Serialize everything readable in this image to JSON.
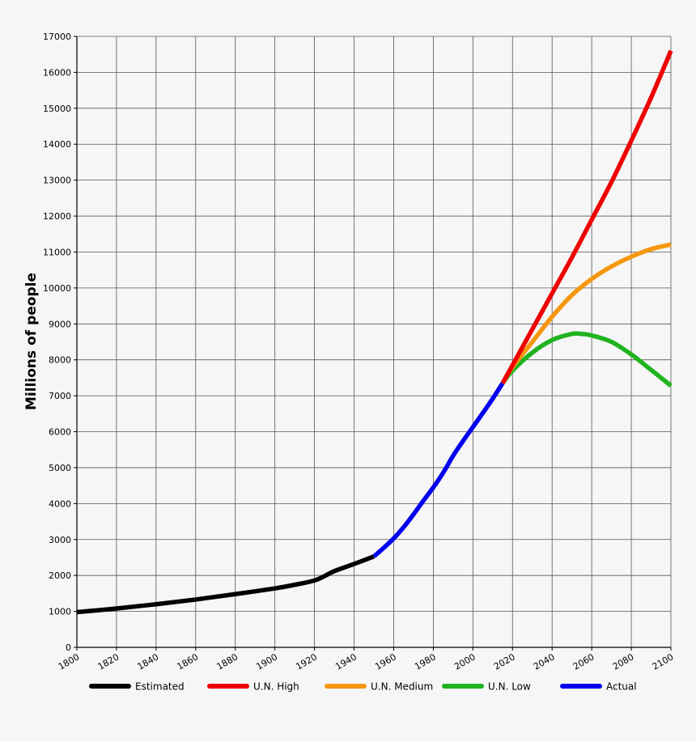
{
  "chart_data": {
    "type": "line",
    "title": "",
    "xlabel": "",
    "ylabel": "Millions of people",
    "xlim": [
      1800,
      2100
    ],
    "ylim": [
      0,
      17000
    ],
    "x_ticks": [
      1800,
      1820,
      1840,
      1860,
      1880,
      1900,
      1920,
      1940,
      1960,
      1980,
      2000,
      2020,
      2040,
      2060,
      2080,
      2100
    ],
    "y_ticks": [
      0,
      1000,
      2000,
      3000,
      4000,
      5000,
      6000,
      7000,
      8000,
      9000,
      10000,
      11000,
      12000,
      13000,
      14000,
      15000,
      16000,
      17000
    ],
    "grid": true,
    "legend_position": "bottom",
    "series": [
      {
        "name": "Estimated",
        "color": "#000000",
        "points": [
          [
            1800,
            980
          ],
          [
            1820,
            1080
          ],
          [
            1840,
            1200
          ],
          [
            1860,
            1330
          ],
          [
            1880,
            1480
          ],
          [
            1900,
            1640
          ],
          [
            1910,
            1740
          ],
          [
            1920,
            1860
          ],
          [
            1925,
            1980
          ],
          [
            1930,
            2120
          ],
          [
            1940,
            2320
          ],
          [
            1950,
            2530
          ]
        ]
      },
      {
        "name": "Actual",
        "color": "#0000ee",
        "points": [
          [
            1950,
            2530
          ],
          [
            1955,
            2770
          ],
          [
            1960,
            3030
          ],
          [
            1965,
            3340
          ],
          [
            1970,
            3700
          ],
          [
            1975,
            4080
          ],
          [
            1980,
            4450
          ],
          [
            1985,
            4860
          ],
          [
            1990,
            5330
          ],
          [
            1995,
            5740
          ],
          [
            2000,
            6130
          ],
          [
            2005,
            6520
          ],
          [
            2010,
            6920
          ],
          [
            2015,
            7350
          ]
        ]
      },
      {
        "name": "U.N. High",
        "color": "#ee0000",
        "points": [
          [
            2015,
            7350
          ],
          [
            2020,
            7850
          ],
          [
            2030,
            8850
          ],
          [
            2040,
            9850
          ],
          [
            2050,
            10850
          ],
          [
            2060,
            11900
          ],
          [
            2070,
            12950
          ],
          [
            2080,
            14100
          ],
          [
            2090,
            15300
          ],
          [
            2100,
            16600
          ]
        ]
      },
      {
        "name": "U.N. Medium",
        "color": "#f5980f",
        "points": [
          [
            2015,
            7350
          ],
          [
            2020,
            7800
          ],
          [
            2030,
            8500
          ],
          [
            2040,
            9200
          ],
          [
            2050,
            9800
          ],
          [
            2060,
            10250
          ],
          [
            2070,
            10600
          ],
          [
            2080,
            10870
          ],
          [
            2090,
            11080
          ],
          [
            2100,
            11210
          ]
        ]
      },
      {
        "name": "U.N. Low",
        "color": "#1fb31f",
        "points": [
          [
            2015,
            7350
          ],
          [
            2020,
            7700
          ],
          [
            2030,
            8200
          ],
          [
            2040,
            8550
          ],
          [
            2050,
            8720
          ],
          [
            2055,
            8720
          ],
          [
            2060,
            8680
          ],
          [
            2070,
            8500
          ],
          [
            2080,
            8150
          ],
          [
            2090,
            7720
          ],
          [
            2100,
            7280
          ]
        ]
      }
    ],
    "legend_order": [
      "Estimated",
      "U.N. High",
      "U.N. Medium",
      "U.N. Low",
      "Actual"
    ]
  }
}
